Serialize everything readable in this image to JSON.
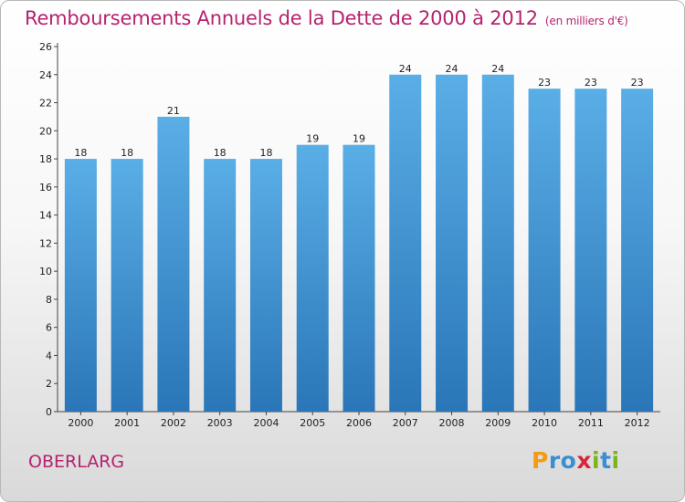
{
  "title": "Remboursements Annuels de la Dette de 2000 à 2012",
  "unit_note": "(en milliers d'€)",
  "city": "OBERLARG",
  "logo": {
    "text": "Proxiti",
    "letters": [
      {
        "char": "P",
        "color": "#f39c12"
      },
      {
        "char": "r",
        "color": "#3a8fd0"
      },
      {
        "char": "o",
        "color": "#3a8fd0"
      },
      {
        "char": "x",
        "color": "#d9263a"
      },
      {
        "char": "i",
        "color": "#7ab51d"
      },
      {
        "char": "t",
        "color": "#3a8fd0"
      },
      {
        "char": "i",
        "color": "#7ab51d"
      }
    ]
  },
  "chart_data": {
    "type": "bar",
    "categories": [
      "2000",
      "2001",
      "2002",
      "2003",
      "2004",
      "2005",
      "2006",
      "2007",
      "2008",
      "2009",
      "2010",
      "2011",
      "2012"
    ],
    "values": [
      18,
      18,
      21,
      18,
      18,
      19,
      19,
      24,
      24,
      24,
      23,
      23,
      23
    ],
    "ylim": [
      0,
      26
    ],
    "yticks": [
      0,
      2,
      4,
      6,
      8,
      10,
      12,
      14,
      16,
      18,
      20,
      22,
      24,
      26
    ],
    "grid": false,
    "bar_color_top": "#5aaee6",
    "bar_color_bottom": "#2a76b8",
    "title_color": "#b5236e"
  }
}
